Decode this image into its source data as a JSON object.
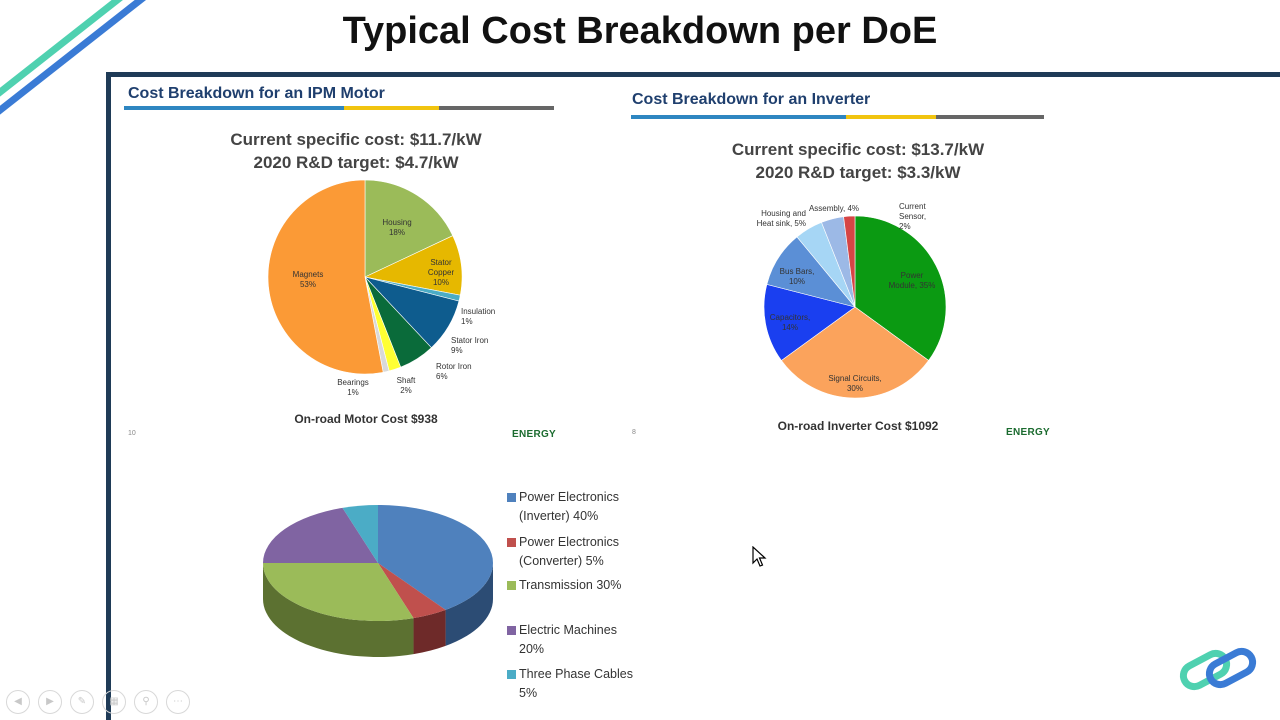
{
  "slide": {
    "title": "Typical Cost Breakdown per DoE"
  },
  "motor_panel": {
    "title": "Cost Breakdown for an IPM Motor",
    "current_cost": "Current specific cost: $11.7/kW",
    "target": "2020 R&D target: $4.7/kW",
    "caption": "On-road Motor Cost $938",
    "page_number": "10",
    "logo_text": "ENERGY"
  },
  "inverter_panel": {
    "title": "Cost Breakdown for an Inverter",
    "current_cost": "Current specific cost: $13.7/kW",
    "target": "2020 R&D target: $3.3/kW",
    "caption": "On-road Inverter Cost $1092",
    "page_number": "8",
    "logo_text": "ENERGY"
  },
  "colors": {
    "frame": "#1f3b57",
    "rule_blue": "#2e86c1",
    "rule_yellow": "#f1c40f",
    "rule_gray": "#666666"
  },
  "chart_data": [
    {
      "type": "pie",
      "title": "Cost Breakdown for an IPM Motor",
      "slices": [
        {
          "label": "Housing",
          "value": 18,
          "text": "18%",
          "color": "#9bbb59"
        },
        {
          "label": "Stator Copper",
          "value": 10,
          "text": "10%",
          "color": "#e6b800"
        },
        {
          "label": "Insulation",
          "value": 1,
          "text": "1%",
          "color": "#4bacc6"
        },
        {
          "label": "Stator Iron",
          "value": 9,
          "text": "9%",
          "color": "#0e5c8e"
        },
        {
          "label": "Rotor Iron",
          "value": 6,
          "text": "6%",
          "color": "#0a6b3a"
        },
        {
          "label": "Shaft",
          "value": 2,
          "text": "2%",
          "color": "#ffff33"
        },
        {
          "label": "Bearings",
          "value": 1,
          "text": "1%",
          "color": "#d9d9d9"
        },
        {
          "label": "Magnets",
          "value": 53,
          "text": "53%",
          "color": "#fb9a36"
        }
      ]
    },
    {
      "type": "pie",
      "title": "Cost Breakdown for an Inverter",
      "slices": [
        {
          "label": "Power Module",
          "value": 35,
          "text": "35%",
          "color": "#0b9a12"
        },
        {
          "label": "Signal Circuits",
          "value": 30,
          "text": "30%",
          "color": "#fba35c"
        },
        {
          "label": "Capacitors",
          "value": 14,
          "text": "14%",
          "color": "#1a3ff0"
        },
        {
          "label": "Bus Bars",
          "value": 10,
          "text": "10%",
          "color": "#5b8fd6"
        },
        {
          "label": "Housing and Heat sink",
          "value": 5,
          "text": "5%",
          "color": "#a6d6f5"
        },
        {
          "label": "Assembly",
          "value": 4,
          "text": "4%",
          "color": "#9cb9e6"
        },
        {
          "label": "Current Sensor",
          "value": 2,
          "text": "2%",
          "color": "#d64545"
        }
      ]
    },
    {
      "type": "pie",
      "title": "",
      "legend": "right",
      "slices": [
        {
          "label": "Power Electronics (Inverter)",
          "value": 40,
          "text": "Power Electronics (Inverter) 40%",
          "line1": "Power Electronics",
          "line2": "(Inverter) 40%",
          "color": "#4f81bd",
          "dark": "#2c4c74"
        },
        {
          "label": "Power Electronics (Converter)",
          "value": 5,
          "text": "Power Electronics (Converter) 5%",
          "line1": "Power Electronics",
          "line2": "(Converter) 5%",
          "color": "#c0504d",
          "dark": "#6e2a29"
        },
        {
          "label": "Transmission",
          "value": 30,
          "text": "Transmission 30%",
          "line1": "Transmission 30%",
          "line2": "",
          "color": "#9bbb59",
          "dark": "#5c7131"
        },
        {
          "label": "Electric Machines",
          "value": 20,
          "text": "Electric Machines 20%",
          "line1": "Electric Machines",
          "line2": "20%",
          "color": "#8064a2",
          "dark": "#4b3a60"
        },
        {
          "label": "Three Phase Cables",
          "value": 5,
          "text": "Three Phase Cables 5%",
          "line1": "Three Phase Cables",
          "line2": "5%",
          "color": "#4bacc6",
          "dark": "#2a6676"
        }
      ]
    }
  ]
}
